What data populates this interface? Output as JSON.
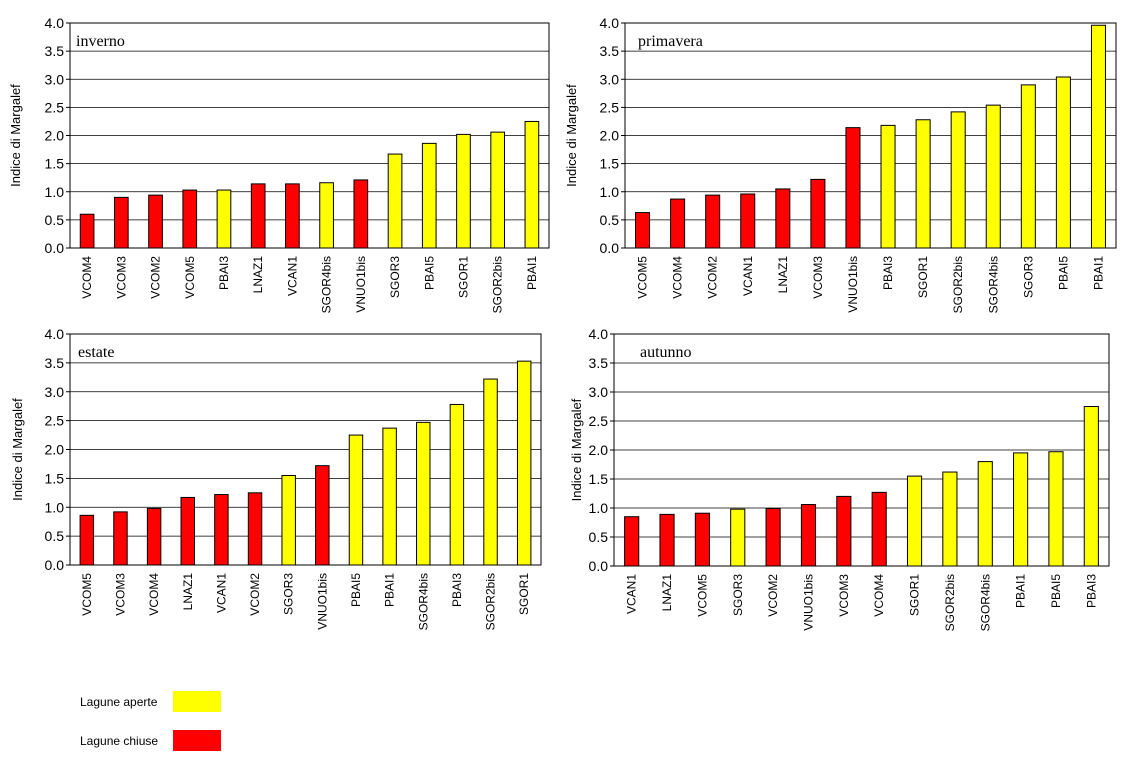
{
  "colors": {
    "open": "#ffff00",
    "closed": "#ff0000",
    "outline": "#000000"
  },
  "legend": {
    "items": [
      {
        "label": "Lagune aperte",
        "group": "open"
      },
      {
        "label": "Lagune chiuse",
        "group": "closed"
      }
    ]
  },
  "chart_data": [
    {
      "type": "bar",
      "title": "inverno",
      "ylabel": "Indice di Margalef",
      "ylim": [
        0,
        4
      ],
      "yticks": [
        "0.0",
        "0.5",
        "1.0",
        "1.5",
        "2.0",
        "2.5",
        "3.0",
        "3.5",
        "4.0"
      ],
      "categories": [
        "VCOM4",
        "VCOM3",
        "VCOM2",
        "VCOM5",
        "PBAI3",
        "LNAZ1",
        "VCAN1",
        "SGOR4bis",
        "VNUO1bis",
        "SGOR3",
        "PBAI5",
        "SGOR1",
        "SGOR2bis",
        "PBAI1"
      ],
      "values": [
        0.6,
        0.9,
        0.94,
        1.03,
        1.03,
        1.14,
        1.14,
        1.16,
        1.21,
        1.67,
        1.86,
        2.02,
        2.06,
        2.25
      ],
      "groups": [
        "closed",
        "closed",
        "closed",
        "closed",
        "open",
        "closed",
        "closed",
        "open",
        "closed",
        "open",
        "open",
        "open",
        "open",
        "open"
      ]
    },
    {
      "type": "bar",
      "title": "primavera",
      "ylabel": "Indice di Margalef",
      "ylim": [
        0,
        4
      ],
      "yticks": [
        "0.0",
        "0.5",
        "1.0",
        "1.5",
        "2.0",
        "2.5",
        "3.0",
        "3.5",
        "4.0"
      ],
      "categories": [
        "VCOM5",
        "VCOM4",
        "VCOM2",
        "VCAN1",
        "LNAZ1",
        "VCOM3",
        "VNUO1bis",
        "PBAI3",
        "SGOR1",
        "SGOR2bis",
        "SGOR4bis",
        "SGOR3",
        "PBAI5",
        "PBAI1"
      ],
      "values": [
        0.63,
        0.87,
        0.94,
        0.96,
        1.05,
        1.22,
        2.14,
        2.18,
        2.28,
        2.42,
        2.54,
        2.9,
        3.04,
        3.96
      ],
      "groups": [
        "closed",
        "closed",
        "closed",
        "closed",
        "closed",
        "closed",
        "closed",
        "open",
        "open",
        "open",
        "open",
        "open",
        "open",
        "open"
      ]
    },
    {
      "type": "bar",
      "title": "estate",
      "ylabel": "Indice di Margalef",
      "ylim": [
        0,
        4
      ],
      "yticks": [
        "0.0",
        "0.5",
        "1.0",
        "1.5",
        "2.0",
        "2.5",
        "3.0",
        "3.5",
        "4.0"
      ],
      "categories": [
        "VCOM5",
        "VCOM3",
        "VCOM4",
        "LNAZ1",
        "VCAN1",
        "VCOM2",
        "SGOR3",
        "VNUO1bis",
        "PBAI5",
        "PBAI1",
        "SGOR4bis",
        "PBAI3",
        "SGOR2bis",
        "SGOR1"
      ],
      "values": [
        0.86,
        0.92,
        0.98,
        1.17,
        1.22,
        1.25,
        1.55,
        1.72,
        2.25,
        2.37,
        2.47,
        2.78,
        3.22,
        3.53
      ],
      "groups": [
        "closed",
        "closed",
        "closed",
        "closed",
        "closed",
        "closed",
        "open",
        "closed",
        "open",
        "open",
        "open",
        "open",
        "open",
        "open"
      ]
    },
    {
      "type": "bar",
      "title": "autunno",
      "ylabel": "Indice di Margalef",
      "ylim": [
        0,
        4
      ],
      "yticks": [
        "0.0",
        "0.5",
        "1.0",
        "1.5",
        "2.0",
        "2.5",
        "3.0",
        "3.5",
        "4.0"
      ],
      "categories": [
        "VCAN1",
        "LNAZ1",
        "VCOM5",
        "SGOR3",
        "VCOM2",
        "VNUO1bis",
        "VCOM3",
        "VCOM4",
        "SGOR1",
        "SGOR2bis",
        "SGOR4bis",
        "PBAI1",
        "PBAI5",
        "PBAI3"
      ],
      "values": [
        0.85,
        0.89,
        0.91,
        0.98,
        0.99,
        1.06,
        1.2,
        1.27,
        1.55,
        1.62,
        1.8,
        1.95,
        1.97,
        2.75
      ],
      "groups": [
        "closed",
        "closed",
        "closed",
        "open",
        "closed",
        "closed",
        "closed",
        "closed",
        "open",
        "open",
        "open",
        "open",
        "open",
        "open"
      ]
    }
  ]
}
